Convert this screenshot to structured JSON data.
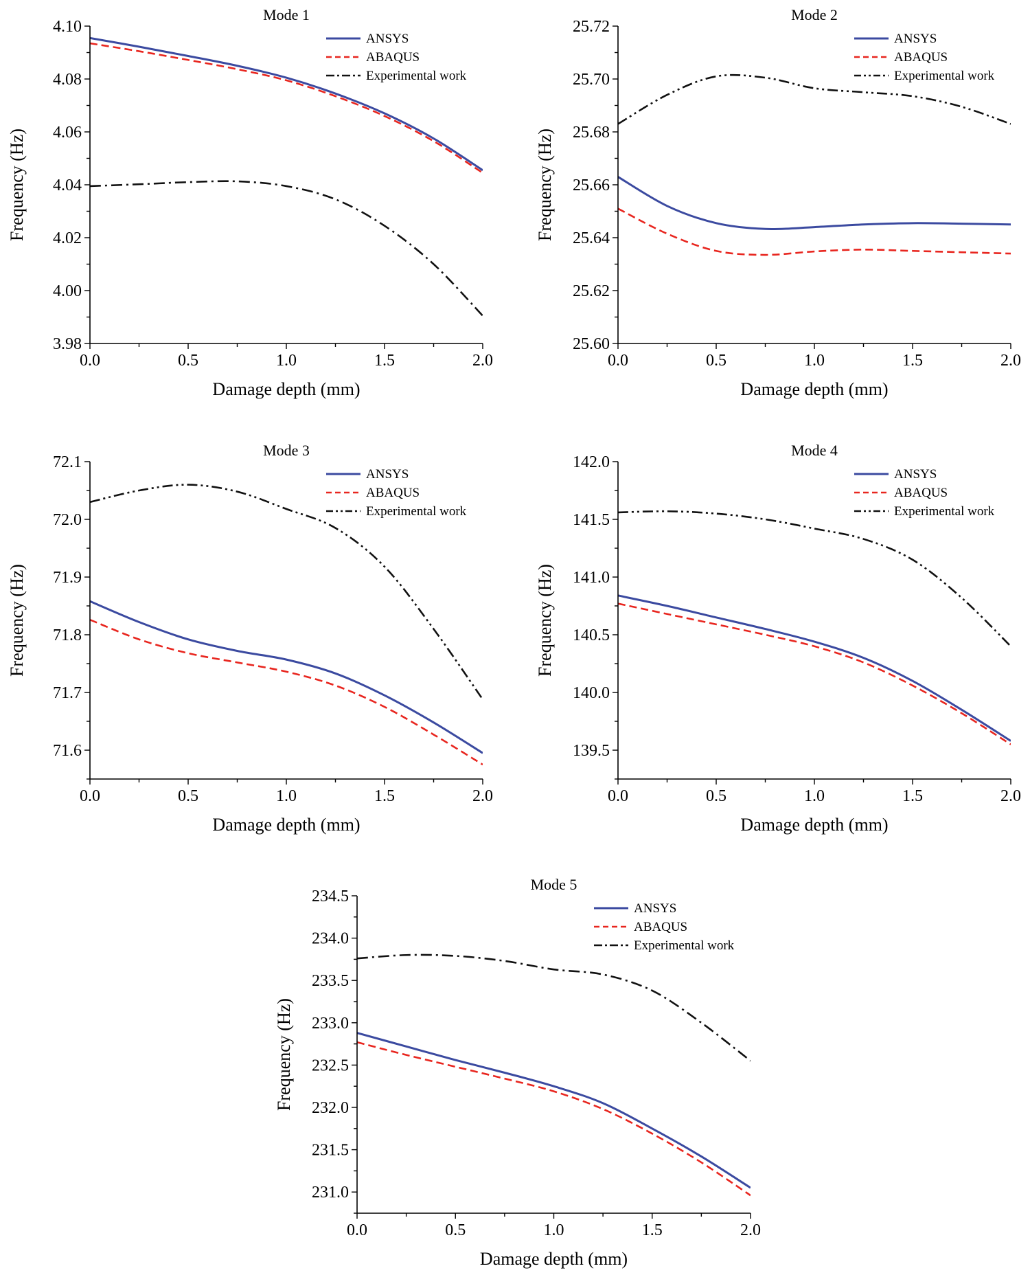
{
  "chart_data": [
    {
      "type": "line",
      "title": "Mode 1",
      "xlabel": "Damage depth (mm)",
      "ylabel": "Frequency (Hz)",
      "xlim": [
        0,
        2
      ],
      "ylim": [
        3.98,
        4.1
      ],
      "xticks": [
        0,
        0.5,
        1,
        1.5,
        2
      ],
      "xtick_labels": [
        "0.0",
        "0.5",
        "1.0",
        "1.5",
        "2.0"
      ],
      "yticks": [
        3.98,
        4.0,
        4.02,
        4.04,
        4.06,
        4.08,
        4.1
      ],
      "ytick_labels": [
        "3.98",
        "4.00",
        "4.02",
        "4.04",
        "4.06",
        "4.08",
        "4.10"
      ],
      "legend_position": "top-right",
      "grid": false,
      "series": [
        {
          "name": "ANSYS",
          "color": "#3b4aa0",
          "dash": "solid",
          "points": [
            [
              0,
              4.0955
            ],
            [
              0.25,
              4.0922
            ],
            [
              0.5,
              4.0887
            ],
            [
              0.75,
              4.085
            ],
            [
              1.0,
              4.0805
            ],
            [
              1.25,
              4.0745
            ],
            [
              1.5,
              4.067
            ],
            [
              1.75,
              4.0575
            ],
            [
              2.0,
              4.0455
            ]
          ]
        },
        {
          "name": "ABAQUS",
          "color": "#e8261f",
          "dash": "dashed",
          "points": [
            [
              0,
              4.0935
            ],
            [
              0.25,
              4.0905
            ],
            [
              0.5,
              4.0872
            ],
            [
              0.75,
              4.0837
            ],
            [
              1.0,
              4.0795
            ],
            [
              1.25,
              4.0735
            ],
            [
              1.5,
              4.066
            ],
            [
              1.75,
              4.0565
            ],
            [
              2.0,
              4.0445
            ]
          ]
        },
        {
          "name": "Experimental work",
          "color": "#111111",
          "dash": "dashdot",
          "points": [
            [
              0,
              4.0395
            ],
            [
              0.25,
              4.0402
            ],
            [
              0.5,
              4.041
            ],
            [
              0.75,
              4.0413
            ],
            [
              1.0,
              4.0395
            ],
            [
              1.25,
              4.0345
            ],
            [
              1.5,
              4.0245
            ],
            [
              1.75,
              4.01
            ],
            [
              2.0,
              3.9905
            ]
          ]
        }
      ]
    },
    {
      "type": "line",
      "title": "Mode 2",
      "xlabel": "Damage depth (mm)",
      "ylabel": "Frequency (Hz)",
      "xlim": [
        0,
        2
      ],
      "ylim": [
        25.6,
        25.72
      ],
      "xticks": [
        0,
        0.5,
        1,
        1.5,
        2
      ],
      "xtick_labels": [
        "0.0",
        "0.5",
        "1.0",
        "1.5",
        "2.0"
      ],
      "yticks": [
        25.6,
        25.62,
        25.64,
        25.66,
        25.68,
        25.7,
        25.72
      ],
      "ytick_labels": [
        "25.60",
        "25.62",
        "25.64",
        "25.66",
        "25.68",
        "25.70",
        "25.72"
      ],
      "legend_position": "top-right",
      "grid": false,
      "series": [
        {
          "name": "ANSYS",
          "color": "#3b4aa0",
          "dash": "solid",
          "points": [
            [
              0,
              25.663
            ],
            [
              0.25,
              25.652
            ],
            [
              0.5,
              25.6455
            ],
            [
              0.75,
              25.6433
            ],
            [
              1.0,
              25.644
            ],
            [
              1.25,
              25.645
            ],
            [
              1.5,
              25.6455
            ],
            [
              1.75,
              25.6453
            ],
            [
              2.0,
              25.645
            ]
          ]
        },
        {
          "name": "ABAQUS",
          "color": "#e8261f",
          "dash": "dashed",
          "points": [
            [
              0,
              25.651
            ],
            [
              0.25,
              25.6415
            ],
            [
              0.5,
              25.635
            ],
            [
              0.75,
              25.6335
            ],
            [
              1.0,
              25.6348
            ],
            [
              1.25,
              25.6355
            ],
            [
              1.5,
              25.635
            ],
            [
              1.75,
              25.6345
            ],
            [
              2.0,
              25.634
            ]
          ]
        },
        {
          "name": "Experimental work",
          "color": "#111111",
          "dash": "dashdotdot",
          "points": [
            [
              0,
              25.683
            ],
            [
              0.25,
              25.694
            ],
            [
              0.5,
              25.701
            ],
            [
              0.75,
              25.7005
            ],
            [
              1.0,
              25.6965
            ],
            [
              1.25,
              25.695
            ],
            [
              1.5,
              25.6935
            ],
            [
              1.75,
              25.6895
            ],
            [
              2.0,
              25.683
            ]
          ]
        }
      ]
    },
    {
      "type": "line",
      "title": "Mode 3",
      "xlabel": "Damage depth (mm)",
      "ylabel": "Frequency (Hz)",
      "xlim": [
        0,
        2
      ],
      "ylim": [
        71.55,
        72.1
      ],
      "xticks": [
        0,
        0.5,
        1,
        1.5,
        2
      ],
      "xtick_labels": [
        "0.0",
        "0.5",
        "1.0",
        "1.5",
        "2.0"
      ],
      "yticks": [
        71.6,
        71.7,
        71.8,
        71.9,
        72.0,
        72.1
      ],
      "ytick_labels": [
        "71.6",
        "71.7",
        "71.8",
        "71.9",
        "72.0",
        "72.1"
      ],
      "legend_position": "top-right",
      "grid": false,
      "series": [
        {
          "name": "ANSYS",
          "color": "#3b4aa0",
          "dash": "solid",
          "points": [
            [
              0,
              71.858
            ],
            [
              0.25,
              71.822
            ],
            [
              0.5,
              71.792
            ],
            [
              0.75,
              71.772
            ],
            [
              1.0,
              71.757
            ],
            [
              1.25,
              71.733
            ],
            [
              1.5,
              71.695
            ],
            [
              1.75,
              71.648
            ],
            [
              2.0,
              71.595
            ]
          ]
        },
        {
          "name": "ABAQUS",
          "color": "#e8261f",
          "dash": "dashed",
          "points": [
            [
              0,
              71.826
            ],
            [
              0.25,
              71.792
            ],
            [
              0.5,
              71.768
            ],
            [
              0.75,
              71.752
            ],
            [
              1.0,
              71.736
            ],
            [
              1.25,
              71.712
            ],
            [
              1.5,
              71.675
            ],
            [
              1.75,
              71.627
            ],
            [
              2.0,
              71.575
            ]
          ]
        },
        {
          "name": "Experimental work",
          "color": "#111111",
          "dash": "dashdotdot",
          "points": [
            [
              0,
              72.03
            ],
            [
              0.25,
              72.05
            ],
            [
              0.5,
              72.06
            ],
            [
              0.75,
              72.048
            ],
            [
              1.0,
              72.018
            ],
            [
              1.25,
              71.985
            ],
            [
              1.5,
              71.918
            ],
            [
              1.75,
              71.81
            ],
            [
              2.0,
              71.688
            ]
          ]
        }
      ]
    },
    {
      "type": "line",
      "title": "Mode 4",
      "xlabel": "Damage depth (mm)",
      "ylabel": "Frequency (Hz)",
      "xlim": [
        0,
        2
      ],
      "ylim": [
        139.25,
        142.0
      ],
      "xticks": [
        0,
        0.5,
        1,
        1.5,
        2
      ],
      "xtick_labels": [
        "0.0",
        "0.5",
        "1.0",
        "1.5",
        "2.0"
      ],
      "yticks": [
        139.5,
        140.0,
        140.5,
        141.0,
        141.5,
        142.0
      ],
      "ytick_labels": [
        "139.5",
        "140.0",
        "140.5",
        "141.0",
        "141.5",
        "142.0"
      ],
      "legend_position": "top-right",
      "grid": false,
      "series": [
        {
          "name": "ANSYS",
          "color": "#3b4aa0",
          "dash": "solid",
          "points": [
            [
              0,
              140.84
            ],
            [
              0.25,
              140.75
            ],
            [
              0.5,
              140.65
            ],
            [
              0.75,
              140.55
            ],
            [
              1.0,
              140.44
            ],
            [
              1.25,
              140.3
            ],
            [
              1.5,
              140.1
            ],
            [
              1.75,
              139.85
            ],
            [
              2.0,
              139.58
            ]
          ]
        },
        {
          "name": "ABAQUS",
          "color": "#e8261f",
          "dash": "dashed",
          "points": [
            [
              0,
              140.77
            ],
            [
              0.25,
              140.68
            ],
            [
              0.5,
              140.59
            ],
            [
              0.75,
              140.5
            ],
            [
              1.0,
              140.4
            ],
            [
              1.25,
              140.26
            ],
            [
              1.5,
              140.06
            ],
            [
              1.75,
              139.82
            ],
            [
              2.0,
              139.55
            ]
          ]
        },
        {
          "name": "Experimental work",
          "color": "#111111",
          "dash": "dashdotdot",
          "points": [
            [
              0,
              141.56
            ],
            [
              0.25,
              141.57
            ],
            [
              0.5,
              141.55
            ],
            [
              0.75,
              141.5
            ],
            [
              1.0,
              141.42
            ],
            [
              1.25,
              141.33
            ],
            [
              1.5,
              141.15
            ],
            [
              1.75,
              140.82
            ],
            [
              2.0,
              140.4
            ]
          ]
        }
      ]
    },
    {
      "type": "line",
      "title": "Mode 5",
      "xlabel": "Damage depth (mm)",
      "ylabel": "Frequency (Hz)",
      "xlim": [
        0,
        2
      ],
      "ylim": [
        230.75,
        234.5
      ],
      "xticks": [
        0,
        0.5,
        1,
        1.5,
        2
      ],
      "xtick_labels": [
        "0.0",
        "0.5",
        "1.0",
        "1.5",
        "2.0"
      ],
      "yticks": [
        231.0,
        231.5,
        232.0,
        232.5,
        233.0,
        233.5,
        234.0,
        234.5
      ],
      "ytick_labels": [
        "231.0",
        "231.5",
        "232.0",
        "232.5",
        "233.0",
        "233.5",
        "234.0",
        "234.5"
      ],
      "legend_position": "top-right",
      "grid": false,
      "series": [
        {
          "name": "ANSYS",
          "color": "#3b4aa0",
          "dash": "solid",
          "points": [
            [
              0,
              232.88
            ],
            [
              0.25,
              232.72
            ],
            [
              0.5,
              232.56
            ],
            [
              0.75,
              232.41
            ],
            [
              1.0,
              232.25
            ],
            [
              1.25,
              232.05
            ],
            [
              1.5,
              231.75
            ],
            [
              1.75,
              231.42
            ],
            [
              2.0,
              231.05
            ]
          ]
        },
        {
          "name": "ABAQUS",
          "color": "#e8261f",
          "dash": "dashed",
          "points": [
            [
              0,
              232.77
            ],
            [
              0.25,
              232.62
            ],
            [
              0.5,
              232.48
            ],
            [
              0.75,
              232.34
            ],
            [
              1.0,
              232.19
            ],
            [
              1.25,
              231.98
            ],
            [
              1.5,
              231.69
            ],
            [
              1.75,
              231.35
            ],
            [
              2.0,
              230.96
            ]
          ]
        },
        {
          "name": "Experimental work",
          "color": "#111111",
          "dash": "dashdot",
          "points": [
            [
              0,
              233.76
            ],
            [
              0.25,
              233.8
            ],
            [
              0.5,
              233.79
            ],
            [
              0.75,
              233.73
            ],
            [
              1.0,
              233.63
            ],
            [
              1.25,
              233.57
            ],
            [
              1.5,
              233.38
            ],
            [
              1.75,
              233.0
            ],
            [
              2.0,
              232.55
            ]
          ]
        }
      ]
    }
  ]
}
